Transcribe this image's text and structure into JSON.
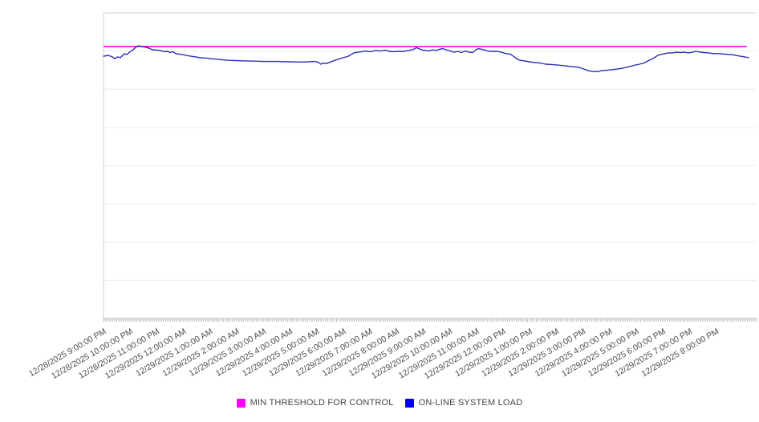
{
  "chart": {
    "title": "",
    "y_axis_labels_visible": false
  },
  "legend": {
    "items": [
      {
        "label": "MIN THRESHOLD FOR CONTROL",
        "color": "#ff00ff"
      },
      {
        "label": "ON-LINE SYSTEM LOAD",
        "color": "#0000ee"
      }
    ]
  },
  "chart_data": {
    "type": "line",
    "title": "",
    "xlabel": "",
    "ylabel": "",
    "grid": true,
    "legend_position": "bottom-center",
    "x_labels": [
      "12/28/2025 9:00:00 PM",
      "12/28/2025 10:00:00 PM",
      "12/28/2025 11:00:00 PM",
      "12/29/2025 12:00:00 AM",
      "12/29/2025 1:00:00 AM",
      "12/29/2025 2:00:00 AM",
      "12/29/2025 3:00:00 AM",
      "12/29/2025 4:00:00 AM",
      "12/29/2025 5:00:00 AM",
      "12/29/2025 6:00:00 AM",
      "12/29/2025 7:00:00 AM",
      "12/29/2025 8:00:00 AM",
      "12/29/2025 9:00:00 AM",
      "12/29/2025 10:00:00 AM",
      "12/29/2025 11:00:00 AM",
      "12/29/2025 12:00:00 PM",
      "12/29/2025 1:00:00 PM",
      "12/29/2025 2:00:00 PM",
      "12/29/2025 3:00:00 PM",
      "12/29/2025 4:00:00 PM",
      "12/29/2025 5:00:00 PM",
      "12/29/2025 6:00:00 PM",
      "12/29/2025 7:00:00 PM",
      "12/29/2025 8:00:00 PM"
    ],
    "y_axis": {
      "labels_visible": false,
      "implied_range": [
        0,
        100
      ],
      "gridline_step": 12.5
    },
    "series": [
      {
        "name": "MIN THRESHOLD FOR CONTROL",
        "kind": "threshold",
        "color": "#e606e6",
        "value": 89.0,
        "t_start": 0,
        "t_end": 24.15
      },
      {
        "name": "ON-LINE SYSTEM LOAD",
        "kind": "line",
        "color": "#2d2db4",
        "points": [
          [
            0.0,
            85.8
          ],
          [
            0.18,
            86.1
          ],
          [
            0.33,
            85.6
          ],
          [
            0.42,
            85.0
          ],
          [
            0.54,
            85.6
          ],
          [
            0.63,
            85.3
          ],
          [
            0.78,
            86.6
          ],
          [
            0.87,
            86.4
          ],
          [
            1.02,
            87.4
          ],
          [
            1.11,
            87.9
          ],
          [
            1.2,
            88.7
          ],
          [
            1.3,
            89.2
          ],
          [
            1.42,
            89.0
          ],
          [
            1.54,
            88.8
          ],
          [
            1.69,
            88.5
          ],
          [
            1.84,
            87.9
          ],
          [
            2.02,
            87.8
          ],
          [
            2.14,
            87.7
          ],
          [
            2.29,
            87.3
          ],
          [
            2.41,
            87.4
          ],
          [
            2.5,
            87.0
          ],
          [
            2.59,
            87.3
          ],
          [
            2.74,
            86.6
          ],
          [
            2.92,
            86.4
          ],
          [
            3.1,
            86.1
          ],
          [
            3.28,
            85.8
          ],
          [
            3.46,
            85.6
          ],
          [
            3.64,
            85.3
          ],
          [
            3.86,
            85.2
          ],
          [
            4.04,
            85.0
          ],
          [
            4.31,
            84.8
          ],
          [
            4.61,
            84.5
          ],
          [
            4.91,
            84.4
          ],
          [
            5.21,
            84.3
          ],
          [
            5.6,
            84.2
          ],
          [
            6.05,
            84.1
          ],
          [
            6.51,
            84.1
          ],
          [
            6.96,
            84.0
          ],
          [
            7.41,
            83.9
          ],
          [
            7.71,
            84.0
          ],
          [
            7.92,
            84.1
          ],
          [
            8.07,
            83.8
          ],
          [
            8.16,
            83.2
          ],
          [
            8.25,
            83.6
          ],
          [
            8.37,
            83.4
          ],
          [
            8.49,
            83.8
          ],
          [
            8.64,
            84.3
          ],
          [
            8.8,
            84.8
          ],
          [
            8.98,
            85.3
          ],
          [
            9.16,
            85.7
          ],
          [
            9.31,
            86.4
          ],
          [
            9.4,
            86.9
          ],
          [
            9.55,
            87.1
          ],
          [
            9.7,
            87.3
          ],
          [
            9.82,
            87.5
          ],
          [
            9.94,
            87.3
          ],
          [
            10.09,
            87.4
          ],
          [
            10.21,
            87.7
          ],
          [
            10.36,
            87.5
          ],
          [
            10.51,
            87.7
          ],
          [
            10.6,
            87.8
          ],
          [
            10.72,
            87.4
          ],
          [
            10.9,
            87.3
          ],
          [
            11.08,
            87.4
          ],
          [
            11.27,
            87.4
          ],
          [
            11.45,
            87.7
          ],
          [
            11.6,
            87.9
          ],
          [
            11.75,
            88.6
          ],
          [
            11.87,
            88.2
          ],
          [
            11.99,
            87.8
          ],
          [
            12.11,
            87.7
          ],
          [
            12.23,
            87.5
          ],
          [
            12.35,
            87.9
          ],
          [
            12.5,
            87.7
          ],
          [
            12.62,
            88.1
          ],
          [
            12.74,
            88.3
          ],
          [
            12.86,
            87.9
          ],
          [
            13.01,
            87.5
          ],
          [
            13.16,
            87.1
          ],
          [
            13.31,
            87.4
          ],
          [
            13.43,
            87.0
          ],
          [
            13.58,
            87.5
          ],
          [
            13.73,
            87.1
          ],
          [
            13.86,
            87.0
          ],
          [
            13.98,
            87.9
          ],
          [
            14.07,
            88.3
          ],
          [
            14.19,
            88.1
          ],
          [
            14.34,
            87.7
          ],
          [
            14.49,
            87.4
          ],
          [
            14.64,
            87.4
          ],
          [
            14.79,
            87.4
          ],
          [
            14.94,
            87.1
          ],
          [
            15.09,
            86.7
          ],
          [
            15.27,
            86.5
          ],
          [
            15.39,
            85.8
          ],
          [
            15.51,
            85.0
          ],
          [
            15.63,
            84.5
          ],
          [
            15.78,
            84.3
          ],
          [
            15.99,
            84.0
          ],
          [
            16.2,
            83.7
          ],
          [
            16.39,
            83.6
          ],
          [
            16.6,
            83.2
          ],
          [
            16.84,
            83.1
          ],
          [
            17.08,
            82.9
          ],
          [
            17.32,
            82.7
          ],
          [
            17.56,
            82.4
          ],
          [
            17.77,
            82.3
          ],
          [
            17.95,
            81.9
          ],
          [
            18.1,
            81.4
          ],
          [
            18.25,
            81.0
          ],
          [
            18.4,
            80.8
          ],
          [
            18.55,
            80.8
          ],
          [
            18.7,
            81.1
          ],
          [
            18.89,
            81.2
          ],
          [
            19.07,
            81.4
          ],
          [
            19.28,
            81.6
          ],
          [
            19.49,
            81.9
          ],
          [
            19.7,
            82.3
          ],
          [
            19.91,
            82.8
          ],
          [
            20.12,
            83.2
          ],
          [
            20.3,
            83.6
          ],
          [
            20.45,
            84.3
          ],
          [
            20.57,
            84.8
          ],
          [
            20.69,
            85.4
          ],
          [
            20.81,
            86.1
          ],
          [
            20.93,
            86.4
          ],
          [
            21.05,
            86.6
          ],
          [
            21.2,
            86.9
          ],
          [
            21.36,
            86.9
          ],
          [
            21.51,
            87.1
          ],
          [
            21.66,
            87.0
          ],
          [
            21.81,
            87.1
          ],
          [
            21.96,
            86.9
          ],
          [
            22.11,
            87.1
          ],
          [
            22.26,
            87.4
          ],
          [
            22.41,
            87.1
          ],
          [
            22.56,
            87.0
          ],
          [
            22.71,
            86.9
          ],
          [
            22.86,
            86.7
          ],
          [
            23.01,
            86.7
          ],
          [
            23.16,
            86.6
          ],
          [
            23.31,
            86.5
          ],
          [
            23.46,
            86.4
          ],
          [
            23.61,
            86.3
          ],
          [
            23.77,
            86.0
          ],
          [
            23.92,
            85.8
          ],
          [
            24.07,
            85.6
          ],
          [
            24.22,
            85.3
          ]
        ]
      }
    ]
  }
}
